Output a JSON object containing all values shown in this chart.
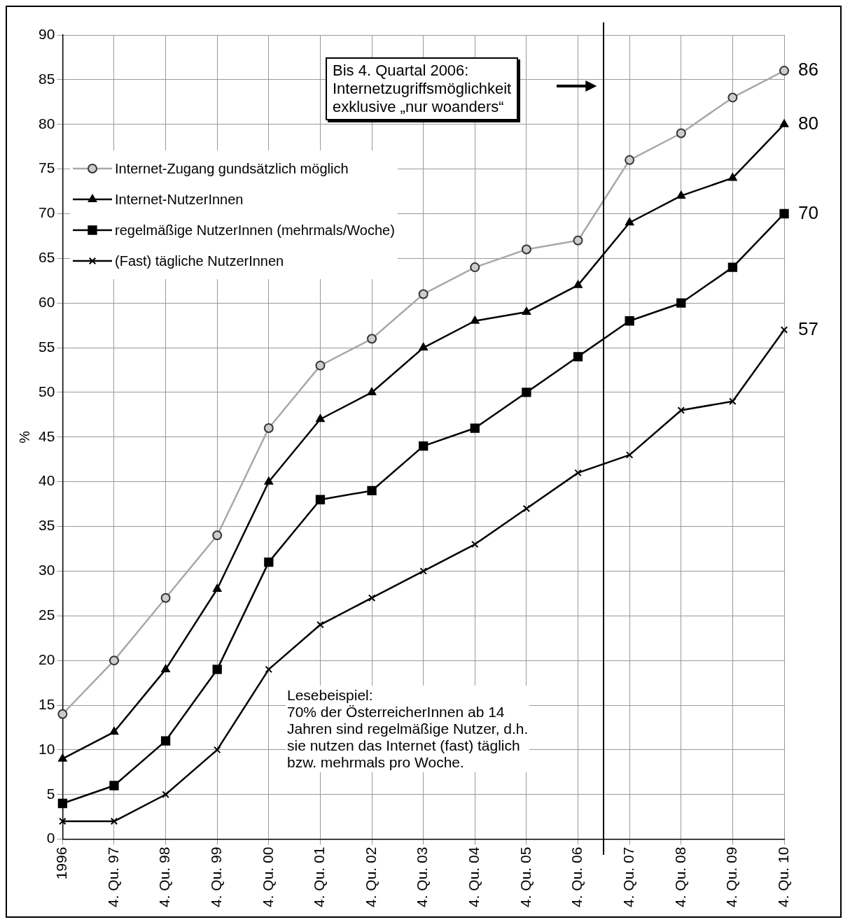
{
  "chart_data": {
    "type": "line",
    "ylabel": "%",
    "categories": [
      "1996",
      "4. Qu. 97",
      "4. Qu. 98",
      "4. Qu. 99",
      "4. Qu. 00",
      "4. Qu. 01",
      "4. Qu. 02",
      "4. Qu. 03",
      "4. Qu. 04",
      "4. Qu. 05",
      "4. Qu. 06",
      "4. Qu. 07",
      "4. Qu. 08",
      "4. Qu. 09",
      "4. Qu. 10"
    ],
    "series": [
      {
        "name": "Internet-Zugang gundsätzlich möglich",
        "color": "#a8a8a8",
        "marker": "circle",
        "values": [
          14,
          20,
          27,
          34,
          46,
          53,
          56,
          61,
          64,
          66,
          67,
          76,
          79,
          83,
          86
        ],
        "value_labels": [
          null,
          null,
          null,
          null,
          null,
          null,
          null,
          null,
          null,
          null,
          null,
          null,
          null,
          null,
          "86"
        ]
      },
      {
        "name": "Internet-NutzerInnen",
        "color": "#000000",
        "marker": "triangle",
        "values": [
          9,
          12,
          19,
          28,
          40,
          47,
          50,
          55,
          58,
          59,
          62,
          69,
          72,
          74,
          80
        ],
        "value_labels": [
          null,
          null,
          null,
          null,
          null,
          null,
          null,
          null,
          null,
          null,
          null,
          null,
          null,
          null,
          "80"
        ]
      },
      {
        "name": "regelmäßige NutzerInnen (mehrmals/Woche)",
        "color": "#000000",
        "marker": "square",
        "values": [
          4,
          6,
          11,
          19,
          31,
          38,
          39,
          44,
          46,
          50,
          54,
          58,
          60,
          64,
          70
        ],
        "value_labels": [
          null,
          null,
          null,
          null,
          null,
          null,
          null,
          null,
          null,
          null,
          null,
          null,
          null,
          null,
          "70"
        ]
      },
      {
        "name": "(Fast) tägliche NutzerInnen",
        "color": "#000000",
        "marker": "cross",
        "values": [
          2,
          2,
          5,
          10,
          19,
          24,
          27,
          30,
          33,
          37,
          41,
          43,
          48,
          49,
          57
        ],
        "value_labels": [
          null,
          null,
          null,
          null,
          null,
          null,
          null,
          null,
          null,
          null,
          null,
          null,
          null,
          null,
          "57"
        ]
      }
    ],
    "ylim": [
      0,
      90
    ],
    "yticks": [
      0,
      5,
      10,
      15,
      20,
      25,
      30,
      35,
      40,
      45,
      50,
      55,
      60,
      65,
      70,
      75,
      80,
      85,
      90
    ],
    "grid": true,
    "legend": "top left",
    "annotations": [
      "Bis 4. Quartal 2006:\nInternetzugriffsmöglichkeit\nexklusive „nur woanders“",
      "Lesebeispiel:\n70% der ÖsterreicherInnen  ab 14\nJahren sind regelmäßige Nutzer,  d.h.\nsie nutzen das Internet  (fast) täglich\nbzw. mehrmals pro Woche."
    ]
  }
}
